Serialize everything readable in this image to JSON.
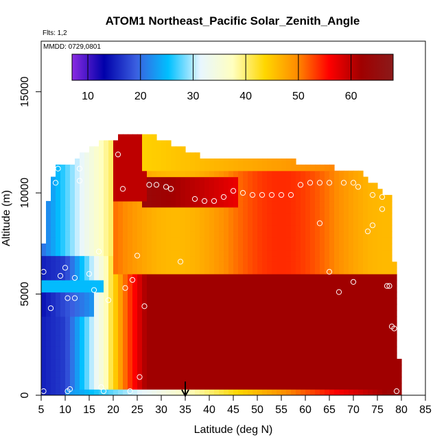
{
  "chart_data": {
    "type": "heatmap",
    "title": "ATOM1 Northeast_Pacific Solar_Zenith_Angle",
    "info_lines": [
      "Flts: 1,2",
      "MMDD: 0729,0801"
    ],
    "xlabel": "Latitude (deg N)",
    "ylabel": "Altitude (m)",
    "xlim": [
      5,
      85
    ],
    "ylim": [
      0,
      17500
    ],
    "x_ticks": [
      "5",
      "10",
      "15",
      "20",
      "25",
      "30",
      "35",
      "40",
      "45",
      "50",
      "55",
      "60",
      "65",
      "70",
      "75",
      "80",
      "85"
    ],
    "y_ticks": [
      "0",
      "5000",
      "10000",
      "15000"
    ],
    "colorbar": {
      "range": [
        7,
        68
      ],
      "ticks": [
        "10",
        "20",
        "30",
        "40",
        "50",
        "60"
      ],
      "stops": [
        "#8a2be2",
        "#0000aa",
        "#3a5fe0",
        "#00c0ff",
        "#e8f6ff",
        "#ffffc0",
        "#ffd700",
        "#ff8c00",
        "#ff0000",
        "#a00000",
        "#8b1a1a"
      ]
    },
    "grid": false,
    "arrow_marker": {
      "x": 35
    },
    "field": {
      "x_bin_width": 1,
      "y_bin_height": 300,
      "altitude_ceiling_by_lat": [
        [
          5,
          6400
        ],
        [
          6,
          8500
        ],
        [
          7,
          10300
        ],
        [
          8,
          11300
        ],
        [
          12,
          11300
        ],
        [
          14,
          11900
        ],
        [
          19,
          12500
        ],
        [
          28,
          12900
        ],
        [
          30,
          12500
        ],
        [
          40,
          11500
        ],
        [
          54,
          11500
        ],
        [
          62,
          11300
        ],
        [
          72,
          10800
        ],
        [
          78,
          9600
        ],
        [
          79,
          3400
        ],
        [
          80,
          0
        ]
      ],
      "model": "sza_by_latitude_with_altitude_perturbations"
    },
    "samples": [
      [
        5.5,
        200
      ],
      [
        7,
        4300
      ],
      [
        5.5,
        6100
      ],
      [
        8,
        10500
      ],
      [
        8.5,
        11200
      ],
      [
        9,
        5900
      ],
      [
        10,
        6300
      ],
      [
        10.5,
        4800
      ],
      [
        10.5,
        200
      ],
      [
        11,
        300
      ],
      [
        12,
        5800
      ],
      [
        12,
        4800
      ],
      [
        13,
        11200
      ],
      [
        13,
        10600
      ],
      [
        15,
        6000
      ],
      [
        16,
        5200
      ],
      [
        17,
        7100
      ],
      [
        17.5,
        400
      ],
      [
        18,
        200
      ],
      [
        19,
        4700
      ],
      [
        21,
        11900
      ],
      [
        22,
        10200
      ],
      [
        22.5,
        5300
      ],
      [
        23.5,
        200
      ],
      [
        24,
        5700
      ],
      [
        25,
        6900
      ],
      [
        25.5,
        900
      ],
      [
        26.5,
        4400
      ],
      [
        27.5,
        10400
      ],
      [
        29,
        10400
      ],
      [
        31,
        10300
      ],
      [
        32,
        10200
      ],
      [
        34,
        6600
      ],
      [
        37,
        9700
      ],
      [
        39,
        9600
      ],
      [
        41,
        9600
      ],
      [
        43,
        9800
      ],
      [
        45,
        10100
      ],
      [
        47,
        10000
      ],
      [
        49,
        9900
      ],
      [
        51,
        9900
      ],
      [
        53,
        9900
      ],
      [
        55,
        9900
      ],
      [
        57,
        9900
      ],
      [
        59,
        10400
      ],
      [
        61,
        10500
      ],
      [
        63,
        10500
      ],
      [
        63,
        8500
      ],
      [
        65,
        6100
      ],
      [
        65,
        10500
      ],
      [
        67,
        5100
      ],
      [
        68,
        10500
      ],
      [
        68,
        11300
      ],
      [
        70,
        10500
      ],
      [
        70,
        5600
      ],
      [
        71,
        10300
      ],
      [
        73,
        8100
      ],
      [
        74,
        9900
      ],
      [
        74,
        8400
      ],
      [
        76,
        9800
      ],
      [
        76,
        9200
      ],
      [
        77,
        5400
      ],
      [
        77.5,
        5400
      ],
      [
        78,
        3400
      ],
      [
        78.5,
        3300
      ],
      [
        79,
        200
      ]
    ]
  }
}
